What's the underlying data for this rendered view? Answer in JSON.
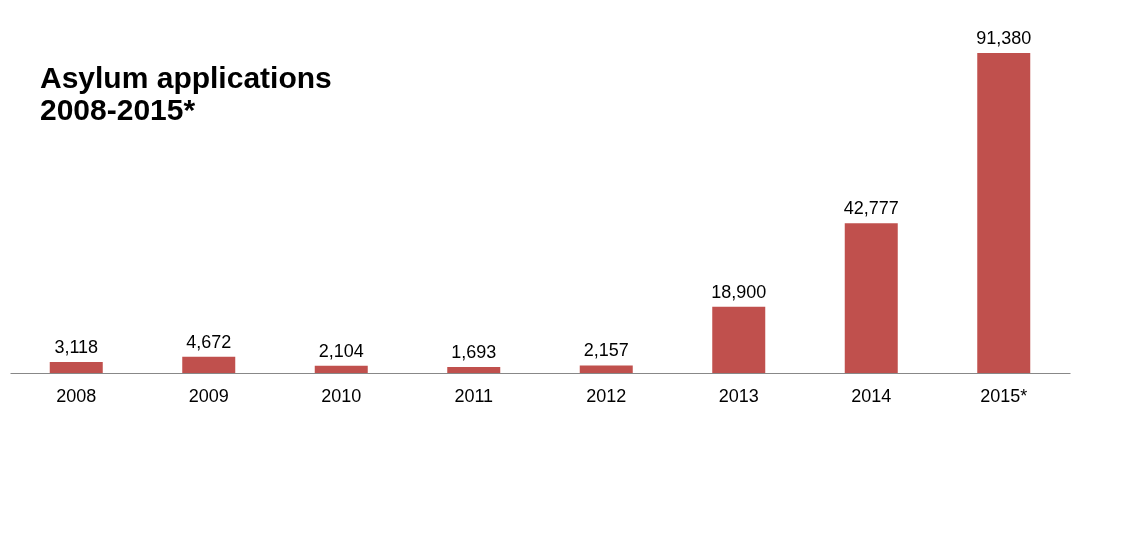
{
  "chart_data": {
    "type": "bar",
    "title": "Asylum applications\n2008-2015*",
    "categories": [
      "2008",
      "2009",
      "2010",
      "2011",
      "2012",
      "2013",
      "2014",
      "2015*"
    ],
    "values": [
      3118,
      4672,
      2104,
      1693,
      2157,
      18900,
      42777,
      91380
    ],
    "value_labels": [
      "3,118",
      "4,672",
      "2,104",
      "1,693",
      "2,157",
      "18,900",
      "42,777",
      "91,380"
    ],
    "color": "#c0504d"
  }
}
